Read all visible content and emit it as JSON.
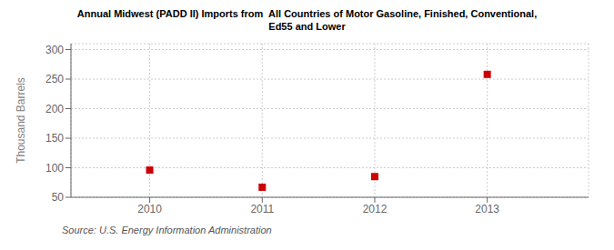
{
  "chart_data": {
    "type": "scatter",
    "title": "Annual Midwest (PADD II) Imports from  All Countries of Motor Gasoline, Finished, Conventional,\nEd55 and Lower",
    "ylabel": "Thousand Barrels",
    "annotations": [
      "Source: U.S. Energy Information Administration"
    ],
    "x": [
      2010,
      2011,
      2012,
      2013
    ],
    "values": [
      96,
      67,
      85,
      258
    ],
    "xlim": [
      2009.3,
      2013.9
    ],
    "ylim": [
      50,
      310
    ],
    "xticks": [
      2010,
      2011,
      2012,
      2013
    ],
    "yticks": [
      50,
      100,
      150,
      200,
      250,
      300
    ],
    "color": "#cc0000",
    "marker": "square",
    "grid": true
  }
}
